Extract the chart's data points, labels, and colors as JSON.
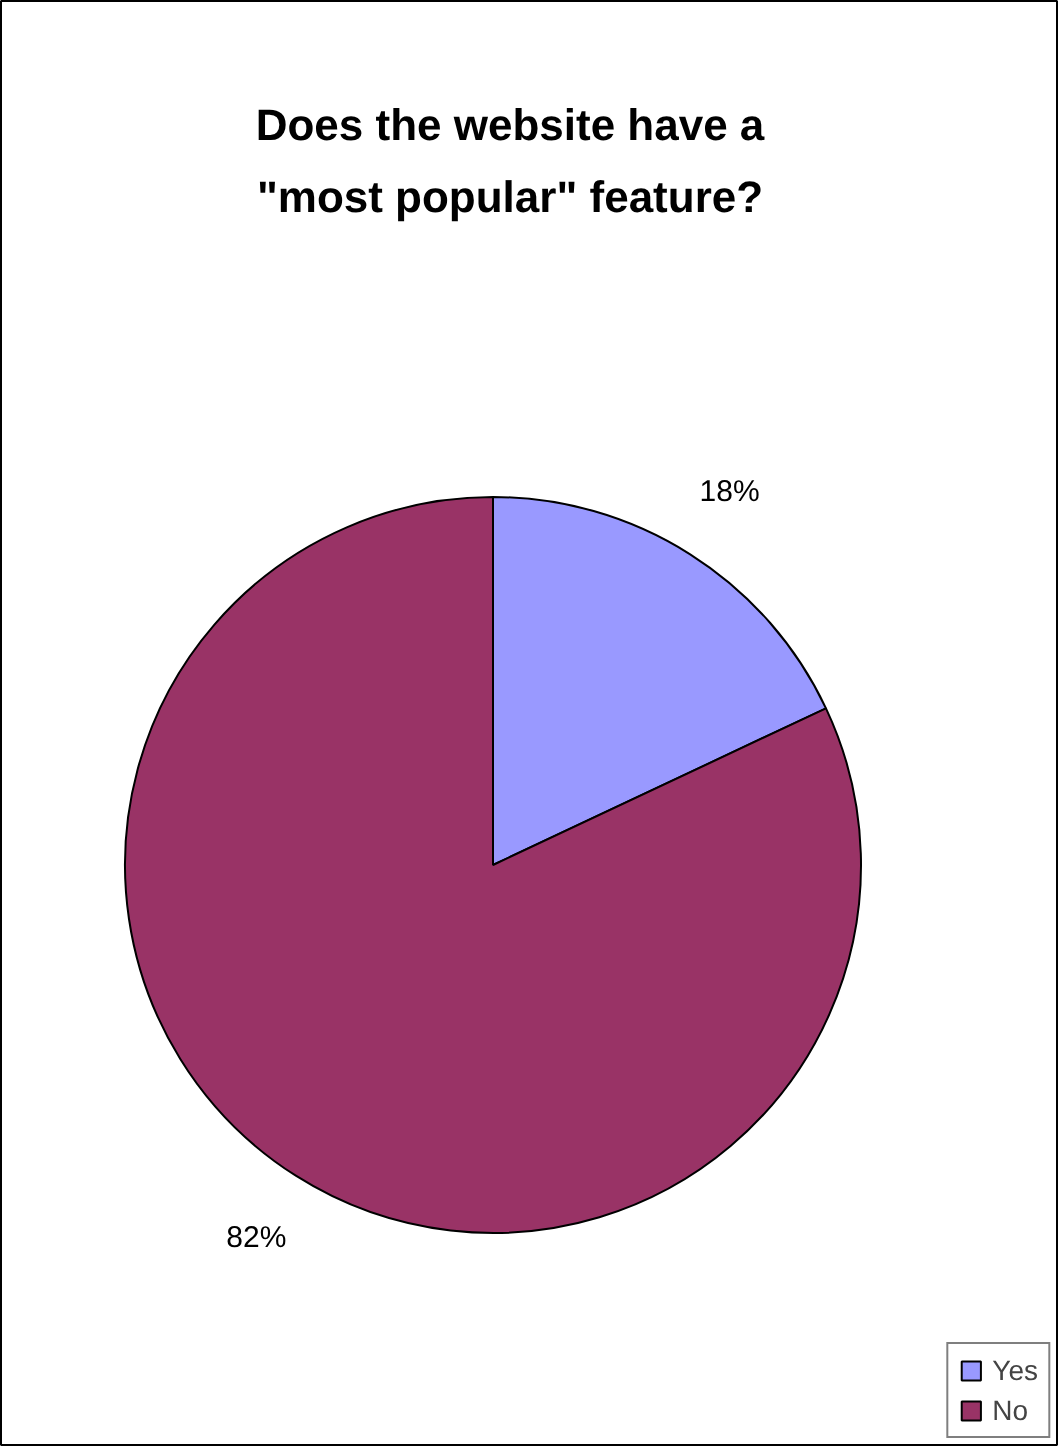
{
  "chart_data": {
    "type": "pie",
    "title": "Does the website have a \"most popular\" feature?",
    "categories": [
      "Yes",
      "No"
    ],
    "values": [
      18,
      82
    ],
    "colors": [
      "#9999ff",
      "#993366"
    ],
    "value_labels": [
      "18%",
      "82%"
    ],
    "legend": "bottom right"
  }
}
